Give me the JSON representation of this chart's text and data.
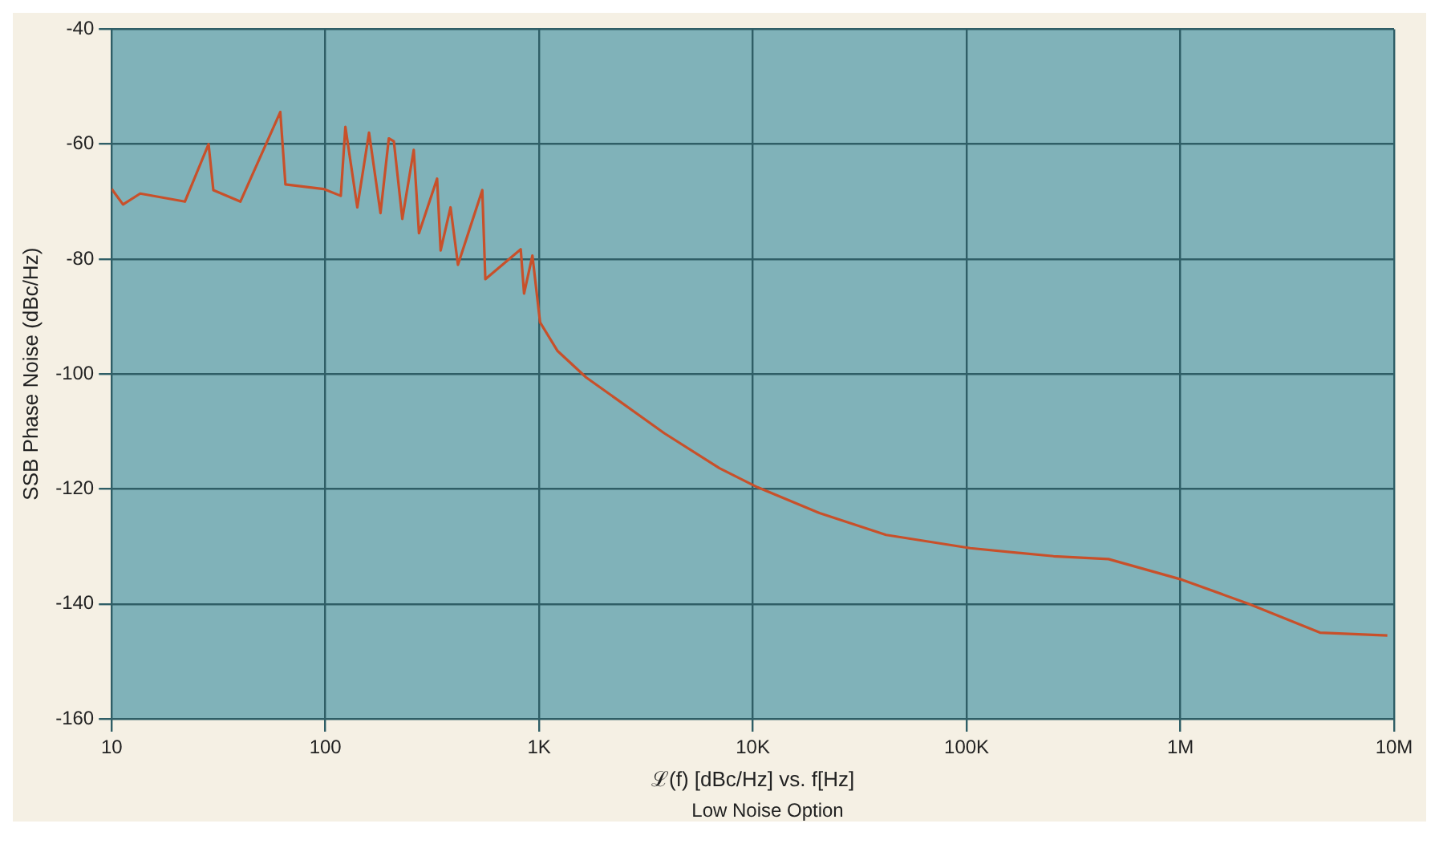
{
  "chart_data": {
    "type": "line",
    "xlabel": "ℒ(f) [dBc/Hz] vs. f[Hz]",
    "ylabel": "SSB Phase Noise (dBc/Hz)",
    "annotations": [
      "Low Noise Option"
    ],
    "log": "x",
    "grid": true,
    "legend": false,
    "marker": "none",
    "line_style": "solid",
    "xlim": [
      10,
      10000000
    ],
    "xticks": [
      10,
      100,
      {
        "value": 1000,
        "label": "1K"
      },
      {
        "value": 10000,
        "label": "10K"
      },
      {
        "value": 100000,
        "label": "100K"
      },
      {
        "value": 1000000,
        "label": "1M"
      },
      {
        "value": 10000000,
        "label": "10M"
      }
    ],
    "ylim": [
      -160,
      -40
    ],
    "yticks": [
      -160,
      -140,
      -120,
      -100,
      -80,
      -60,
      -40
    ],
    "series": [
      {
        "color": "#c8502a",
        "x": [
          10,
          11.3,
          13.6,
          22,
          28.4,
          29.9,
          40,
          61.5,
          65,
          98,
          118,
          124,
          141,
          160,
          181,
          198,
          209,
          229,
          259,
          274,
          333,
          346,
          385,
          417,
          542,
          560,
          820,
          850,
          930,
          1010,
          1220,
          1660,
          2370,
          3850,
          6980,
          10500,
          20500,
          42000,
          104000,
          255000,
          461000,
          1020000,
          2090000,
          4500000,
          9300000
        ],
        "values": [
          -67.8,
          -70.5,
          -68.6,
          -70,
          -60,
          -68,
          -70,
          -54.4,
          -67,
          -67.8,
          -69,
          -57,
          -71,
          -58,
          -72,
          -59,
          -59.5,
          -73,
          -61,
          -75.5,
          -66,
          -78.5,
          -71,
          -81,
          -68,
          -83.5,
          -78.3,
          -86,
          -79.4,
          -91,
          -96,
          -100.6,
          -104.7,
          -110.3,
          -116.4,
          -119.7,
          -124.2,
          -128,
          -130.3,
          -131.7,
          -132.2,
          -135.8,
          -140,
          -145,
          -145.5
        ]
      }
    ]
  }
}
